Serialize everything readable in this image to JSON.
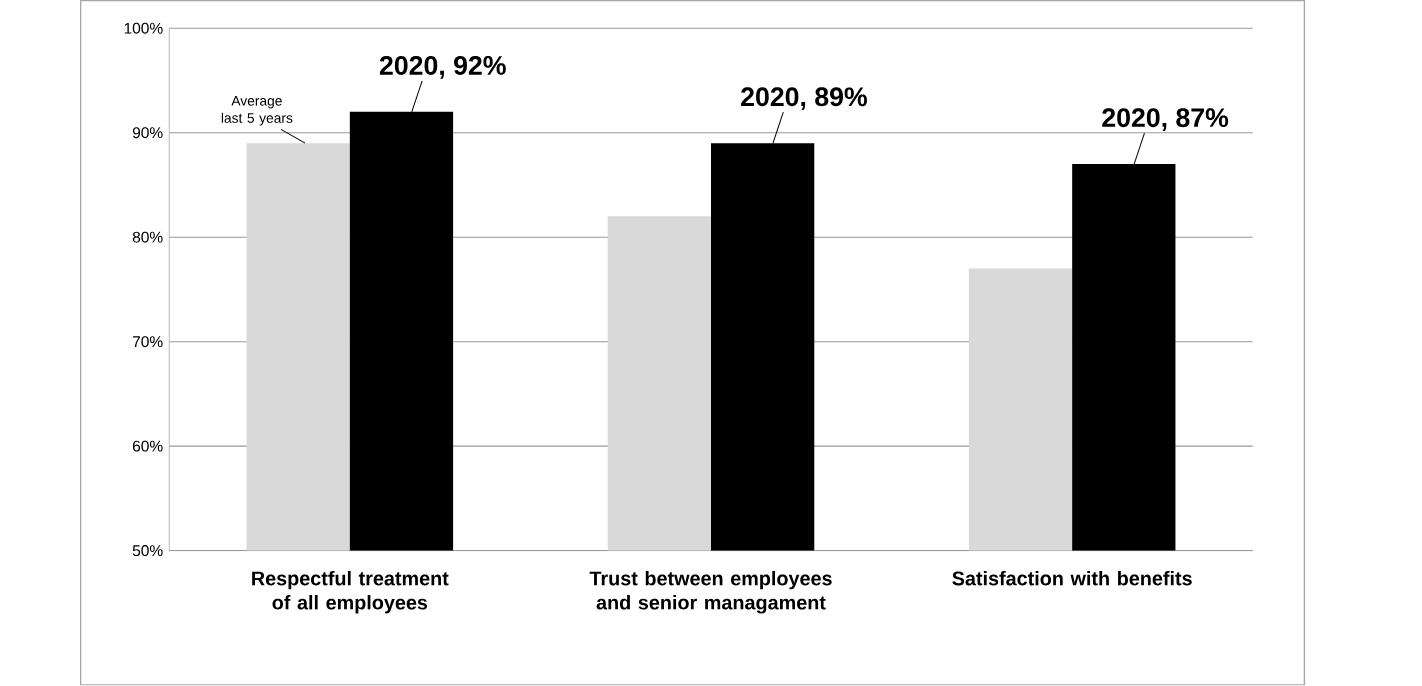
{
  "chart_data": {
    "type": "bar",
    "categories": [
      "Respectful treatment of all employees",
      "Trust between employees and senior managament",
      "Satisfaction with benefits"
    ],
    "series": [
      {
        "name": "Average last 5 years",
        "color": "#d9d9d9",
        "values": [
          89,
          82,
          77
        ]
      },
      {
        "color": "#000000",
        "values": [
          92,
          89,
          87
        ],
        "value_labels": [
          "2020, 92%",
          "2020, 89%",
          "2020, 87%"
        ]
      }
    ],
    "ylim": [
      50,
      100
    ],
    "yticks": [
      {
        "value": 50,
        "label": "50%"
      },
      {
        "value": 60,
        "label": "60%"
      },
      {
        "value": 70,
        "label": "70%"
      },
      {
        "value": 80,
        "label": "80%"
      },
      {
        "value": 90,
        "label": "90%"
      },
      {
        "value": 100,
        "label": "100%"
      }
    ],
    "grid": "y"
  }
}
